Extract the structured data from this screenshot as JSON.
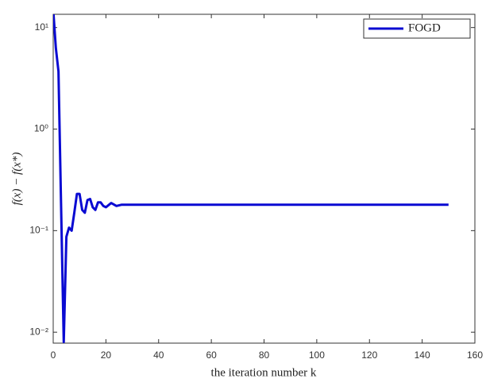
{
  "chart_data": {
    "type": "line",
    "xlabel": "the iteration number k",
    "ylabel": "f(x) − f(x*)",
    "x": [
      0,
      1,
      2,
      3,
      4,
      5,
      6,
      7,
      8,
      9,
      10,
      11,
      12,
      13,
      14,
      15,
      16,
      17,
      18,
      19,
      20,
      22,
      24,
      26,
      30,
      40,
      60,
      80,
      100,
      120,
      150
    ],
    "series": [
      {
        "name": "FOGD",
        "color": "#0a0ad2",
        "values": [
          15,
          6.3,
          3.7,
          0.17,
          0.008,
          0.087,
          0.107,
          0.1,
          0.15,
          0.23,
          0.23,
          0.16,
          0.15,
          0.2,
          0.205,
          0.17,
          0.16,
          0.19,
          0.19,
          0.175,
          0.17,
          0.187,
          0.175,
          0.18,
          0.18,
          0.18,
          0.18,
          0.18,
          0.18,
          0.18,
          0.18
        ]
      }
    ],
    "xlim": [
      0,
      160
    ],
    "xticks": [
      0,
      20,
      40,
      60,
      80,
      100,
      120,
      140,
      160
    ],
    "ylim": [
      0.0078,
      13.5
    ],
    "ylog": true,
    "yticks": [
      {
        "value": 0.01,
        "label": "10⁻²"
      },
      {
        "value": 0.1,
        "label": "10⁻¹"
      },
      {
        "value": 1,
        "label": "10⁰"
      },
      {
        "value": 10,
        "label": "10¹"
      }
    ],
    "legend": "upper right",
    "grid": false
  }
}
